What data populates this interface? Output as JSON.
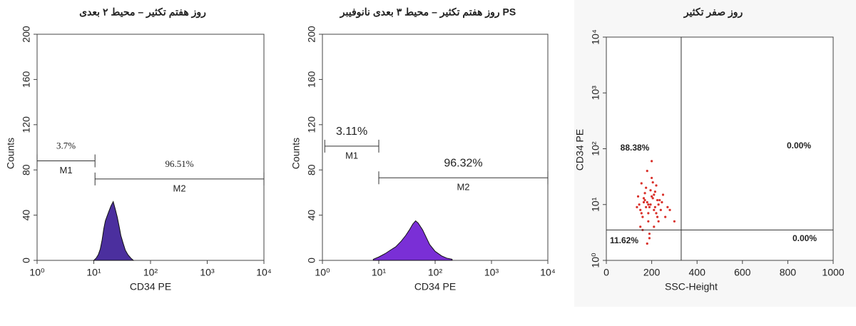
{
  "chart_data": [
    {
      "type": "area",
      "title": "روز هفتم تکثیر – محیط ۲ بعدی",
      "x_label": "CD34 PE",
      "y_label": "Counts",
      "xscale": "log",
      "xlim": [
        1,
        10000
      ],
      "xticks": [
        {
          "value": 1,
          "label": "10⁰"
        },
        {
          "value": 10,
          "label": "10¹"
        },
        {
          "value": 100,
          "label": "10²"
        },
        {
          "value": 1000,
          "label": "10³"
        },
        {
          "value": 10000,
          "label": "10⁴"
        }
      ],
      "ylim": [
        0,
        200
      ],
      "yticks": [
        0,
        40,
        80,
        120,
        160,
        200
      ],
      "color": "#4b2f9e",
      "x": [
        10,
        11,
        12,
        13,
        14,
        15,
        16,
        18,
        20,
        22,
        24,
        26,
        28,
        30,
        33,
        36,
        40,
        45,
        50
      ],
      "values": [
        0,
        2,
        5,
        10,
        18,
        28,
        35,
        42,
        48,
        52,
        45,
        38,
        30,
        22,
        15,
        9,
        5,
        2,
        0
      ],
      "gates": [
        {
          "name": "M1",
          "label": "3.7%",
          "from": 1,
          "to": 10.5,
          "y": 88
        },
        {
          "name": "M2",
          "label": "96.51%",
          "from": 10.5,
          "to": 10000,
          "y": 72
        }
      ]
    },
    {
      "type": "area",
      "title": "روز هفتم تکثیر – محیط ۳ بعدی نانوفیبر PS",
      "x_label": "CD34 PE",
      "y_label": "Counts",
      "xscale": "log",
      "xlim": [
        1,
        10000
      ],
      "xticks": [
        {
          "value": 1,
          "label": "10⁰"
        },
        {
          "value": 10,
          "label": "10¹"
        },
        {
          "value": 100,
          "label": "10²"
        },
        {
          "value": 1000,
          "label": "10³"
        },
        {
          "value": 10000,
          "label": "10⁴"
        }
      ],
      "ylim": [
        0,
        200
      ],
      "yticks": [
        0,
        40,
        80,
        120,
        160,
        200
      ],
      "color": "#7a2fd6",
      "x": [
        8,
        10,
        13,
        16,
        20,
        25,
        30,
        35,
        40,
        45,
        50,
        60,
        70,
        80,
        100,
        130,
        160,
        200
      ],
      "values": [
        1,
        3,
        6,
        9,
        12,
        17,
        22,
        27,
        32,
        35,
        33,
        27,
        20,
        14,
        8,
        4,
        2,
        1
      ],
      "gates": [
        {
          "name": "M1",
          "label": "3.11%",
          "from": 1.1,
          "to": 10,
          "y": 101
        },
        {
          "name": "M2",
          "label": "96.32%",
          "from": 10,
          "to": 10000,
          "y": 73
        }
      ]
    },
    {
      "type": "scatter",
      "title": "روز صفر تکثیر",
      "x_label": "SSC-Height",
      "y_label": "CD34 PE",
      "yscale": "log",
      "xlim": [
        0,
        1000
      ],
      "xticks": [
        0,
        200,
        400,
        600,
        800,
        1000
      ],
      "ylim": [
        1,
        10000
      ],
      "yticks": [
        {
          "value": 1,
          "label": "10⁰"
        },
        {
          "value": 10,
          "label": "10¹"
        },
        {
          "value": 100,
          "label": "10²"
        },
        {
          "value": 1000,
          "label": "10³"
        },
        {
          "value": 10000,
          "label": "10⁴"
        }
      ],
      "color": "#d9302a",
      "quadrant_x": 330,
      "quadrant_y": 3.5,
      "quadrants": [
        "88.38%",
        "0.00%",
        "11.62%",
        "0.00%"
      ],
      "x": [
        150,
        170,
        190,
        210,
        230,
        160,
        180,
        200,
        220,
        175,
        195,
        215,
        165,
        185,
        205,
        225,
        240,
        145,
        155,
        250,
        260,
        135,
        200,
        210,
        190,
        180,
        170,
        230,
        220,
        245,
        270,
        150,
        160,
        185,
        195,
        205,
        175,
        215,
        165,
        280,
        140,
        200,
        225,
        190,
        180,
        210,
        235,
        155,
        300,
        185
      ],
      "y": [
        8,
        12,
        9,
        15,
        10,
        6,
        11,
        14,
        7,
        20,
        18,
        9,
        13,
        5,
        25,
        12,
        8,
        10,
        7,
        15,
        6,
        9,
        30,
        4,
        3,
        40,
        16,
        5,
        22,
        11,
        9,
        4,
        3.5,
        7,
        10,
        13,
        9,
        17,
        11,
        8,
        14,
        60,
        6,
        2.5,
        2,
        8,
        12,
        24,
        5,
        10
      ]
    }
  ]
}
